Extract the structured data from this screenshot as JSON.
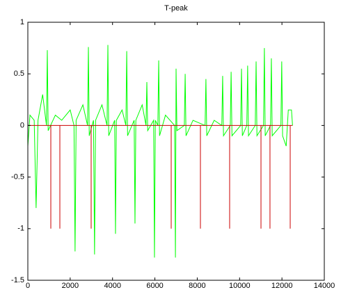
{
  "chart_data": {
    "type": "line",
    "title": "T-peak",
    "xlim": [
      0,
      14000
    ],
    "xticks": [
      0,
      2000,
      4000,
      6000,
      8000,
      10000,
      12000,
      14000
    ],
    "ylim": [
      -1.5,
      1
    ],
    "yticks": [
      -1.5,
      -1,
      -0.5,
      0,
      0.5,
      1
    ],
    "series": [
      {
        "color": "#00ff00",
        "x": [
          0,
          100,
          300,
          390,
          480,
          700,
          880,
          920,
          960,
          1300,
          1600,
          2000,
          2180,
          2230,
          2280,
          2600,
          2820,
          2860,
          2900,
          3100,
          3150,
          3200,
          3500,
          3740,
          3780,
          3820,
          4100,
          4140,
          4180,
          4450,
          4630,
          4670,
          4710,
          5020,
          5060,
          5100,
          5400,
          5580,
          5620,
          5660,
          5940,
          5980,
          6020,
          6140,
          6180,
          6220,
          6500,
          6930,
          6970,
          7000,
          7040,
          7390,
          7430,
          7470,
          7800,
          8370,
          8410,
          8450,
          8800,
          9160,
          9200,
          9240,
          9560,
          9600,
          9640,
          10050,
          10090,
          10130,
          10340,
          10380,
          10420,
          10740,
          10780,
          10820,
          11130,
          11170,
          11210,
          11460,
          11500,
          11540,
          11950,
          11990,
          12030,
          12200,
          12300,
          12450,
          12500
        ],
        "values": [
          -0.2,
          0.1,
          0.05,
          -0.8,
          0.05,
          0.3,
          0,
          0.73,
          -0.05,
          0.1,
          0.05,
          0.15,
          0,
          -1.22,
          0.05,
          0.2,
          0,
          0.76,
          -0.1,
          0.05,
          -1.25,
          0.05,
          0.2,
          0,
          0.78,
          -0.1,
          0.05,
          -1.05,
          0.05,
          0.15,
          0,
          0.72,
          -0.1,
          0.05,
          -0.95,
          0.05,
          0.2,
          0,
          0.42,
          -0.05,
          0.05,
          -1.28,
          0.05,
          0,
          0.63,
          -0.1,
          0.1,
          0,
          -1.28,
          0.55,
          -0.05,
          0,
          0.5,
          -0.1,
          0.05,
          0,
          0.45,
          -0.1,
          0.05,
          0,
          0.48,
          -0.1,
          0,
          0.52,
          -0.1,
          0,
          0.55,
          -0.1,
          0,
          0.58,
          -0.1,
          0,
          0.62,
          -0.1,
          0,
          0.75,
          -0.1,
          0,
          0.65,
          -0.1,
          0,
          0.62,
          -0.1,
          -0.2,
          0.15,
          0.15,
          0
        ]
      },
      {
        "color": "#cc0000",
        "x": [
          0,
          1085,
          1085,
          1085,
          1512,
          1512,
          1512,
          2990,
          2990,
          2990,
          6770,
          6770,
          6770,
          8150,
          8150,
          8150,
          9530,
          9530,
          9530,
          11010,
          11010,
          11010,
          11435,
          11435,
          11435,
          12390,
          12390,
          12390,
          12500
        ],
        "values": [
          0,
          0,
          -1,
          0,
          0,
          -1,
          0,
          0,
          -1,
          0,
          0,
          -1,
          0,
          0,
          -1,
          0,
          0,
          -1,
          0,
          0,
          -1,
          0,
          0,
          -1,
          0,
          0,
          -1,
          0,
          0
        ]
      }
    ]
  }
}
